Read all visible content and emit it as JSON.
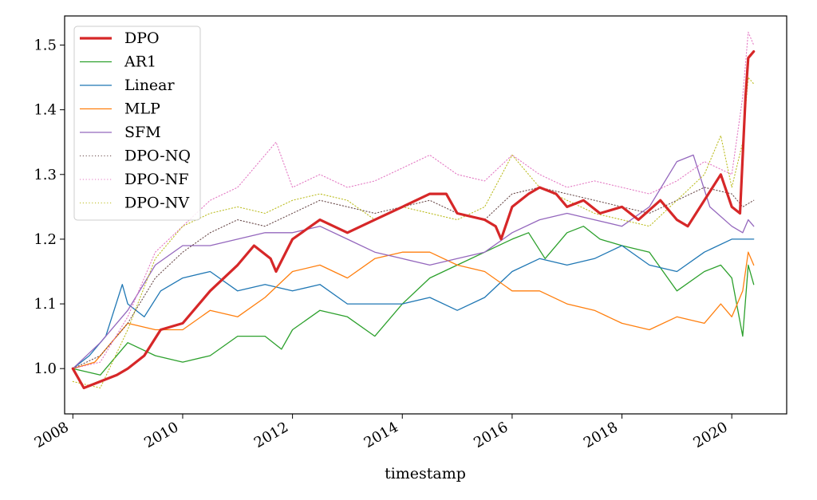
{
  "chart_data": {
    "type": "line",
    "title": "",
    "xlabel": "timestamp",
    "ylabel": "",
    "xlim": [
      2007.85,
      2021.0
    ],
    "ylim": [
      0.93,
      1.545
    ],
    "xticks": [
      "2008",
      "2010",
      "2012",
      "2014",
      "2016",
      "2018",
      "2020"
    ],
    "yticks": [
      "1.0",
      "1.1",
      "1.2",
      "1.3",
      "1.4",
      "1.5"
    ],
    "legend_placement": "top-left",
    "grid": false,
    "series": [
      {
        "name": "DPO",
        "color": "#d62728",
        "style": "solid",
        "width": 3.2,
        "x": [
          2008.0,
          2008.2,
          2008.5,
          2008.8,
          2009.0,
          2009.3,
          2009.6,
          2010.0,
          2010.5,
          2011.0,
          2011.3,
          2011.6,
          2011.7,
          2012.0,
          2012.5,
          2013.0,
          2013.5,
          2014.0,
          2014.5,
          2014.8,
          2015.0,
          2015.5,
          2015.7,
          2015.8,
          2016.0,
          2016.3,
          2016.5,
          2016.8,
          2017.0,
          2017.3,
          2017.6,
          2018.0,
          2018.3,
          2018.7,
          2019.0,
          2019.2,
          2019.5,
          2019.8,
          2020.0,
          2020.15,
          2020.25,
          2020.3,
          2020.4
        ],
        "y": [
          1.0,
          0.97,
          0.98,
          0.99,
          1.0,
          1.02,
          1.06,
          1.07,
          1.12,
          1.16,
          1.19,
          1.17,
          1.15,
          1.2,
          1.23,
          1.21,
          1.23,
          1.25,
          1.27,
          1.27,
          1.24,
          1.23,
          1.22,
          1.2,
          1.25,
          1.27,
          1.28,
          1.27,
          1.25,
          1.26,
          1.24,
          1.25,
          1.23,
          1.26,
          1.23,
          1.22,
          1.26,
          1.3,
          1.25,
          1.24,
          1.42,
          1.48,
          1.49
        ]
      },
      {
        "name": "AR1",
        "color": "#2ca02c",
        "style": "solid",
        "width": 1.3,
        "x": [
          2008.0,
          2008.5,
          2009.0,
          2009.5,
          2010.0,
          2010.5,
          2011.0,
          2011.5,
          2011.8,
          2012.0,
          2012.5,
          2013.0,
          2013.5,
          2014.0,
          2014.5,
          2015.0,
          2015.5,
          2016.0,
          2016.3,
          2016.6,
          2017.0,
          2017.3,
          2017.6,
          2018.0,
          2018.5,
          2019.0,
          2019.5,
          2019.8,
          2020.0,
          2020.2,
          2020.3,
          2020.4
        ],
        "y": [
          1.0,
          0.99,
          1.04,
          1.02,
          1.01,
          1.02,
          1.05,
          1.05,
          1.03,
          1.06,
          1.09,
          1.08,
          1.05,
          1.1,
          1.14,
          1.16,
          1.18,
          1.2,
          1.21,
          1.17,
          1.21,
          1.22,
          1.2,
          1.19,
          1.18,
          1.12,
          1.15,
          1.16,
          1.14,
          1.05,
          1.16,
          1.13
        ]
      },
      {
        "name": "Linear",
        "color": "#1f77b4",
        "style": "solid",
        "width": 1.3,
        "x": [
          2008.0,
          2008.3,
          2008.6,
          2008.9,
          2009.0,
          2009.3,
          2009.6,
          2010.0,
          2010.5,
          2011.0,
          2011.5,
          2012.0,
          2012.5,
          2013.0,
          2013.5,
          2014.0,
          2014.5,
          2015.0,
          2015.5,
          2016.0,
          2016.5,
          2017.0,
          2017.5,
          2018.0,
          2018.5,
          2019.0,
          2019.5,
          2020.0,
          2020.2,
          2020.3,
          2020.4
        ],
        "y": [
          1.0,
          1.02,
          1.05,
          1.13,
          1.1,
          1.08,
          1.12,
          1.14,
          1.15,
          1.12,
          1.13,
          1.12,
          1.13,
          1.1,
          1.1,
          1.1,
          1.11,
          1.09,
          1.11,
          1.15,
          1.17,
          1.16,
          1.17,
          1.19,
          1.16,
          1.15,
          1.18,
          1.2,
          1.2,
          1.2,
          1.2
        ]
      },
      {
        "name": "MLP",
        "color": "#ff7f0e",
        "style": "solid",
        "width": 1.3,
        "x": [
          2008.0,
          2008.4,
          2008.8,
          2009.0,
          2009.5,
          2010.0,
          2010.5,
          2011.0,
          2011.5,
          2012.0,
          2012.5,
          2013.0,
          2013.5,
          2014.0,
          2014.5,
          2015.0,
          2015.5,
          2016.0,
          2016.5,
          2017.0,
          2017.5,
          2018.0,
          2018.5,
          2019.0,
          2019.5,
          2019.8,
          2020.0,
          2020.2,
          2020.3,
          2020.4
        ],
        "y": [
          1.0,
          1.01,
          1.05,
          1.07,
          1.06,
          1.06,
          1.09,
          1.08,
          1.11,
          1.15,
          1.16,
          1.14,
          1.17,
          1.18,
          1.18,
          1.16,
          1.15,
          1.12,
          1.12,
          1.1,
          1.09,
          1.07,
          1.06,
          1.08,
          1.07,
          1.1,
          1.08,
          1.12,
          1.18,
          1.16
        ]
      },
      {
        "name": "SFM",
        "color": "#9467bd",
        "style": "solid",
        "width": 1.3,
        "x": [
          2008.0,
          2008.5,
          2009.0,
          2009.5,
          2010.0,
          2010.5,
          2011.0,
          2011.5,
          2012.0,
          2012.5,
          2013.0,
          2013.5,
          2014.0,
          2014.5,
          2015.0,
          2015.5,
          2016.0,
          2016.5,
          2017.0,
          2017.5,
          2018.0,
          2018.5,
          2019.0,
          2019.3,
          2019.6,
          2020.0,
          2020.2,
          2020.3,
          2020.4
        ],
        "y": [
          1.0,
          1.04,
          1.09,
          1.16,
          1.19,
          1.19,
          1.2,
          1.21,
          1.21,
          1.22,
          1.2,
          1.18,
          1.17,
          1.16,
          1.17,
          1.18,
          1.21,
          1.23,
          1.24,
          1.23,
          1.22,
          1.25,
          1.32,
          1.33,
          1.25,
          1.22,
          1.21,
          1.23,
          1.22
        ]
      },
      {
        "name": "DPO-NQ",
        "color": "#6b4c4c",
        "style": "dotted",
        "width": 1.1,
        "x": [
          2008.0,
          2008.5,
          2009.0,
          2009.5,
          2010.0,
          2010.5,
          2011.0,
          2011.5,
          2012.0,
          2012.5,
          2013.0,
          2013.5,
          2014.0,
          2014.5,
          2015.0,
          2015.5,
          2016.0,
          2016.5,
          2017.0,
          2017.5,
          2018.0,
          2018.5,
          2019.0,
          2019.5,
          2020.0,
          2020.2,
          2020.4
        ],
        "y": [
          1.0,
          1.02,
          1.07,
          1.14,
          1.18,
          1.21,
          1.23,
          1.22,
          1.24,
          1.26,
          1.25,
          1.24,
          1.25,
          1.26,
          1.24,
          1.23,
          1.27,
          1.28,
          1.27,
          1.26,
          1.25,
          1.24,
          1.26,
          1.28,
          1.27,
          1.25,
          1.26
        ]
      },
      {
        "name": "DPO-NF",
        "color": "#e377c2",
        "style": "dotted",
        "width": 1.1,
        "x": [
          2008.0,
          2008.5,
          2009.0,
          2009.5,
          2010.0,
          2010.5,
          2011.0,
          2011.5,
          2011.7,
          2012.0,
          2012.5,
          2013.0,
          2013.5,
          2014.0,
          2014.5,
          2015.0,
          2015.5,
          2016.0,
          2016.5,
          2017.0,
          2017.5,
          2018.0,
          2018.5,
          2019.0,
          2019.5,
          2020.0,
          2020.2,
          2020.3,
          2020.4
        ],
        "y": [
          1.0,
          1.01,
          1.08,
          1.18,
          1.22,
          1.26,
          1.28,
          1.33,
          1.35,
          1.28,
          1.3,
          1.28,
          1.29,
          1.31,
          1.33,
          1.3,
          1.29,
          1.33,
          1.3,
          1.28,
          1.29,
          1.28,
          1.27,
          1.29,
          1.32,
          1.3,
          1.42,
          1.52,
          1.5
        ]
      },
      {
        "name": "DPO-NV",
        "color": "#bcbd22",
        "style": "dotted",
        "width": 1.1,
        "x": [
          2008.0,
          2008.5,
          2009.0,
          2009.5,
          2010.0,
          2010.5,
          2011.0,
          2011.5,
          2012.0,
          2012.5,
          2013.0,
          2013.5,
          2014.0,
          2014.5,
          2015.0,
          2015.5,
          2016.0,
          2016.5,
          2017.0,
          2017.5,
          2018.0,
          2018.5,
          2019.0,
          2019.5,
          2019.8,
          2020.0,
          2020.2,
          2020.3,
          2020.4
        ],
        "y": [
          0.98,
          0.97,
          1.06,
          1.17,
          1.22,
          1.24,
          1.25,
          1.24,
          1.26,
          1.27,
          1.26,
          1.23,
          1.25,
          1.24,
          1.23,
          1.25,
          1.33,
          1.28,
          1.26,
          1.24,
          1.23,
          1.22,
          1.26,
          1.3,
          1.36,
          1.28,
          1.35,
          1.45,
          1.44
        ]
      }
    ]
  }
}
